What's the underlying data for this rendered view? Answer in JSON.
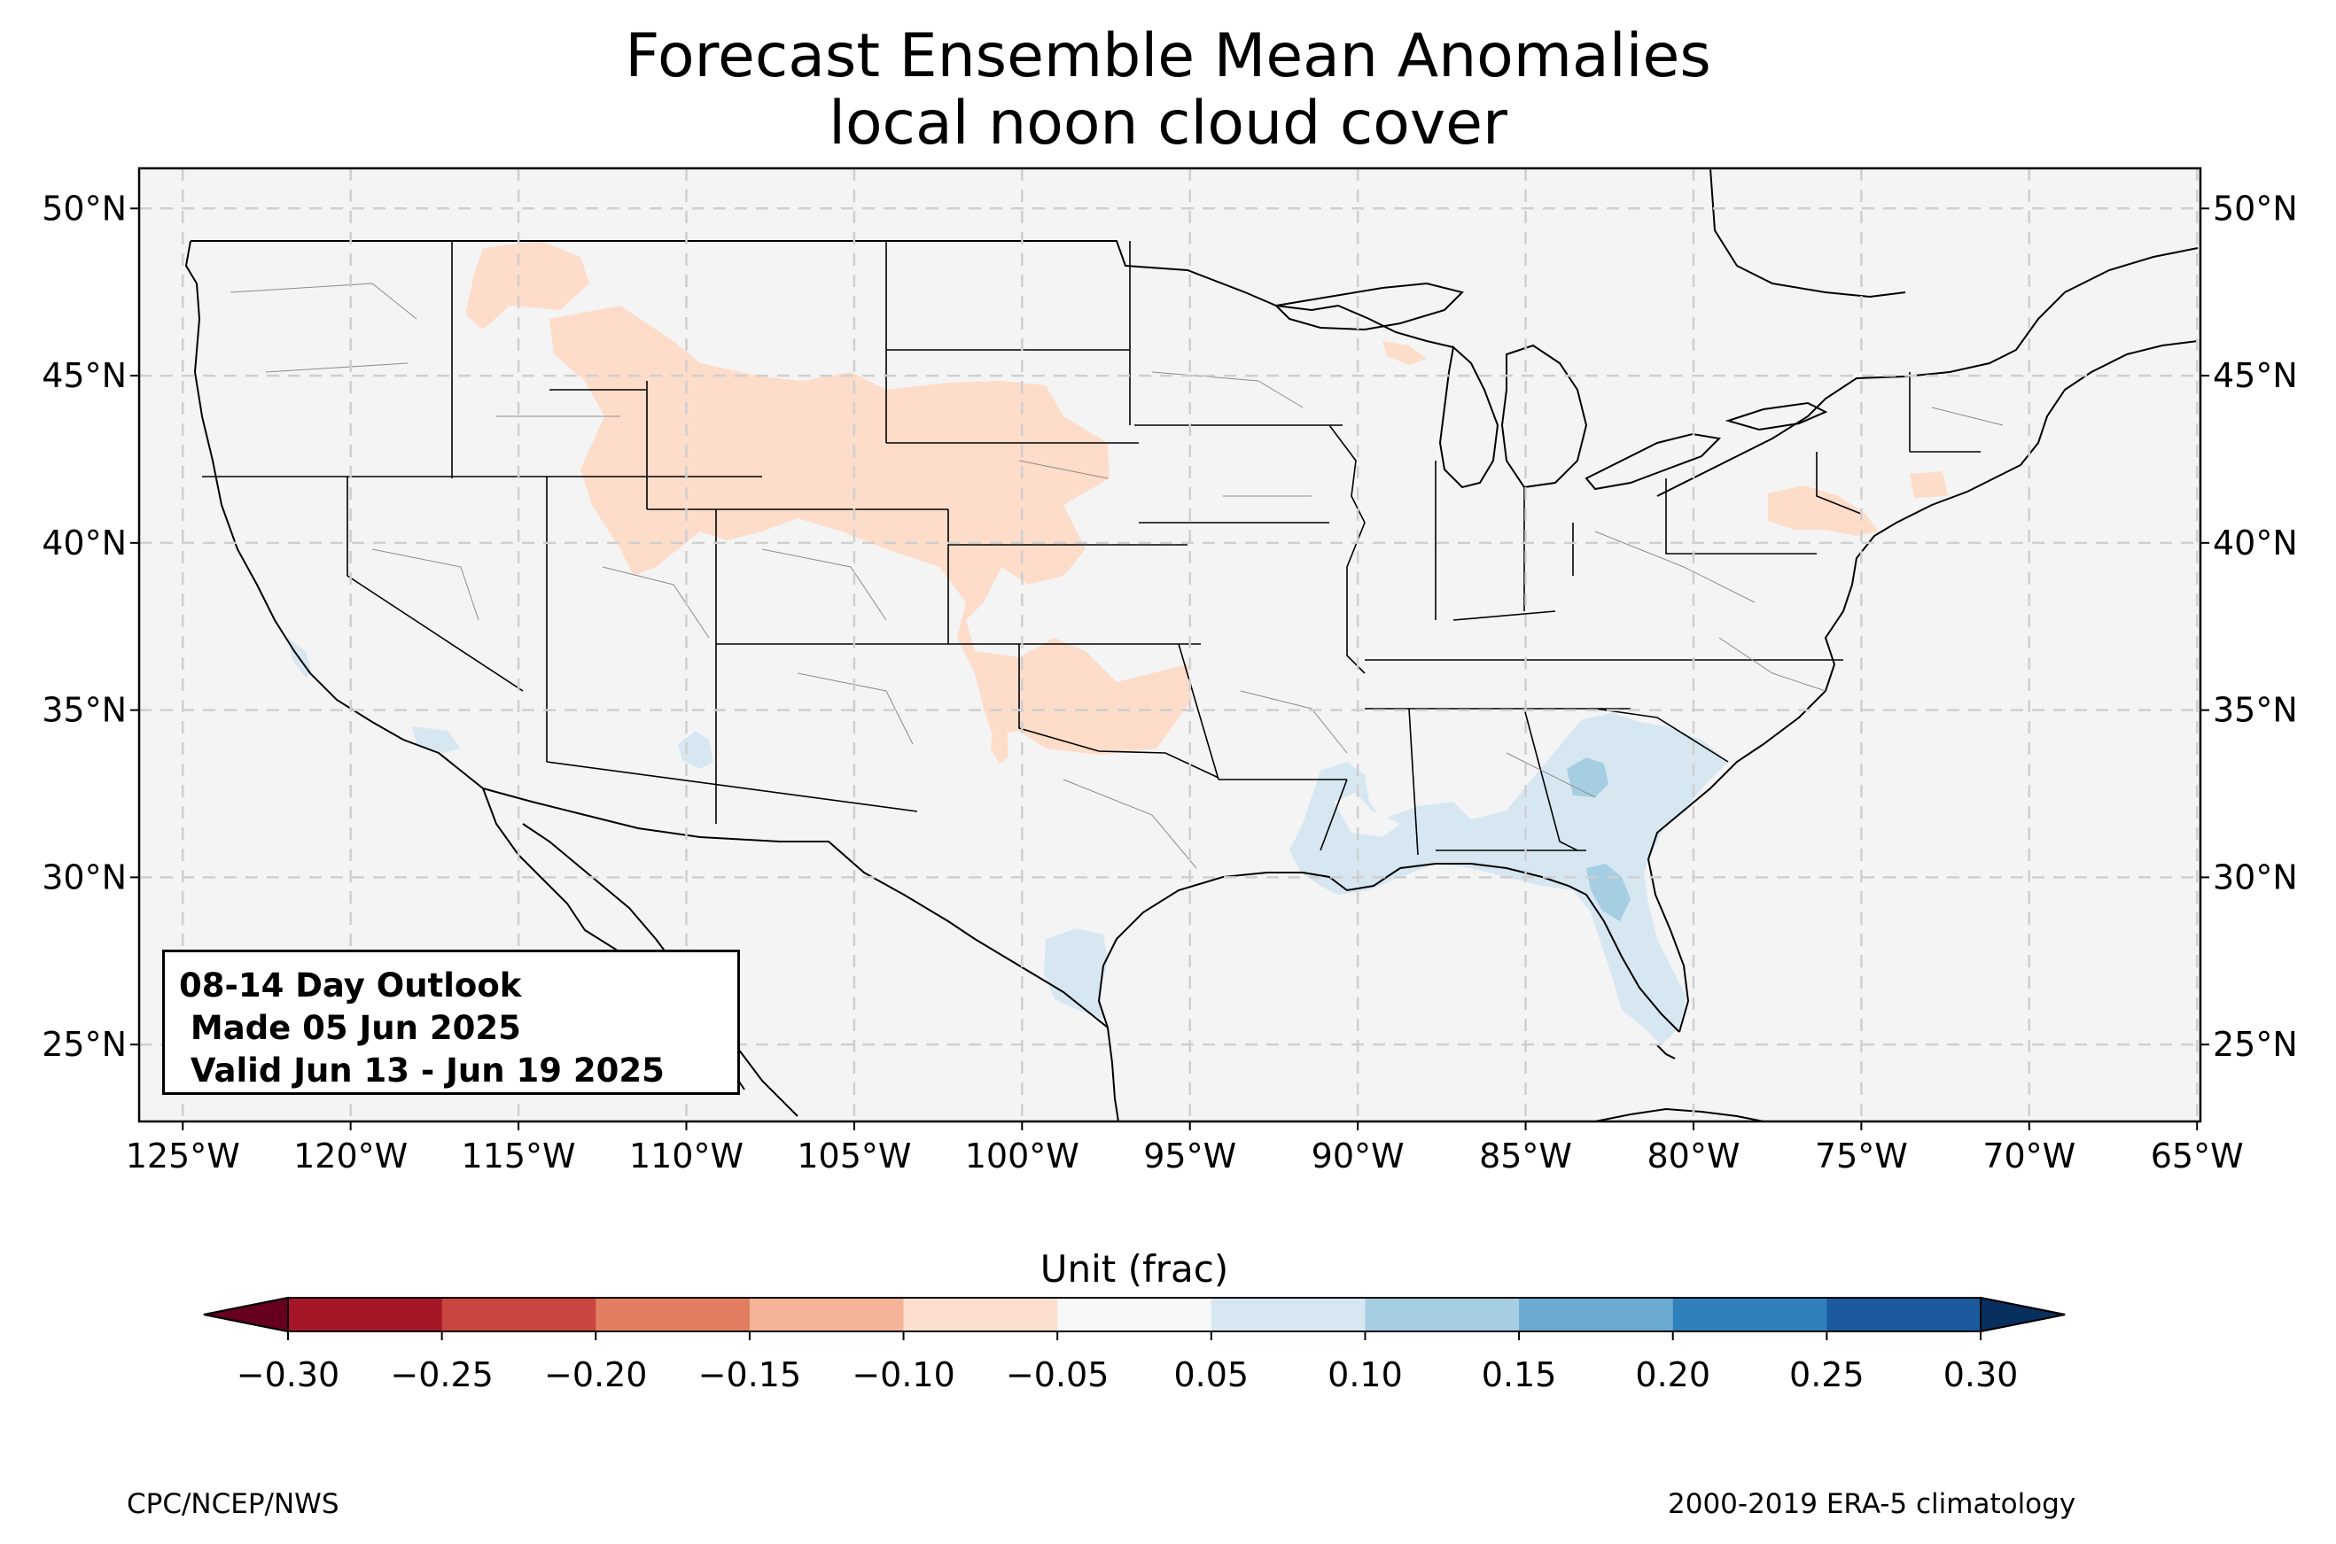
{
  "title": {
    "line1": "Forecast Ensemble Mean Anomalies",
    "line2": "local noon cloud cover"
  },
  "map": {
    "lon_range": [
      -126.3,
      -64.9
    ],
    "lat_range": [
      22.7,
      51.2
    ],
    "gridlines": "dashed light gray",
    "background": "#f4f4f4",
    "lon_ticks": [
      "125°W",
      "120°W",
      "115°W",
      "110°W",
      "105°W",
      "100°W",
      "95°W",
      "90°W",
      "85°W",
      "80°W",
      "75°W",
      "70°W",
      "65°W"
    ],
    "lat_ticks": [
      "25°N",
      "30°N",
      "35°N",
      "40°N",
      "45°N",
      "50°N"
    ],
    "anomaly_regions": [
      {
        "name": "northern rockies & plains",
        "category": "-0.10 to -0.05"
      },
      {
        "name": "southern plains",
        "category": "-0.10 to -0.05"
      },
      {
        "name": "northern michigan",
        "category": "-0.10 to -0.05"
      },
      {
        "name": "pennsylvania / new jersey",
        "category": "-0.10 to -0.05"
      },
      {
        "name": "new england",
        "category": "-0.10 to -0.05"
      },
      {
        "name": "southeast",
        "category": "0.05 to 0.10"
      },
      {
        "name": "georgia / florida core",
        "category": "0.10 to 0.15"
      },
      {
        "name": "south texas coast",
        "category": "0.05 to 0.10"
      },
      {
        "name": "southern california",
        "category": "0.05 to 0.10"
      },
      {
        "name": "arizona",
        "category": "0.05 to 0.10"
      }
    ]
  },
  "info_box": {
    "line1": "08-14 Day Outlook",
    "line2": " Made 05 Jun 2025",
    "line3": " Valid Jun 13 - Jun 19 2025"
  },
  "colorbar": {
    "label": "Unit (frac)",
    "ticks": [
      "−0.30",
      "−0.25",
      "−0.20",
      "−0.15",
      "−0.10",
      "−0.05",
      "0.05",
      "0.10",
      "0.15",
      "0.20",
      "0.25",
      "0.30"
    ],
    "colors": [
      "#a51627",
      "#c9453f",
      "#e27d62",
      "#f4b397",
      "#fddfd0",
      "#f7f7f7",
      "#d6e7f1",
      "#a6cee3",
      "#6aa9d0",
      "#3080bc",
      "#1b5a9c"
    ],
    "under_color": "#67001f",
    "over_color": "#08305f"
  },
  "footer": {
    "left": "CPC/NCEP/NWS",
    "right": "2000-2019 ERA-5 climatology"
  }
}
